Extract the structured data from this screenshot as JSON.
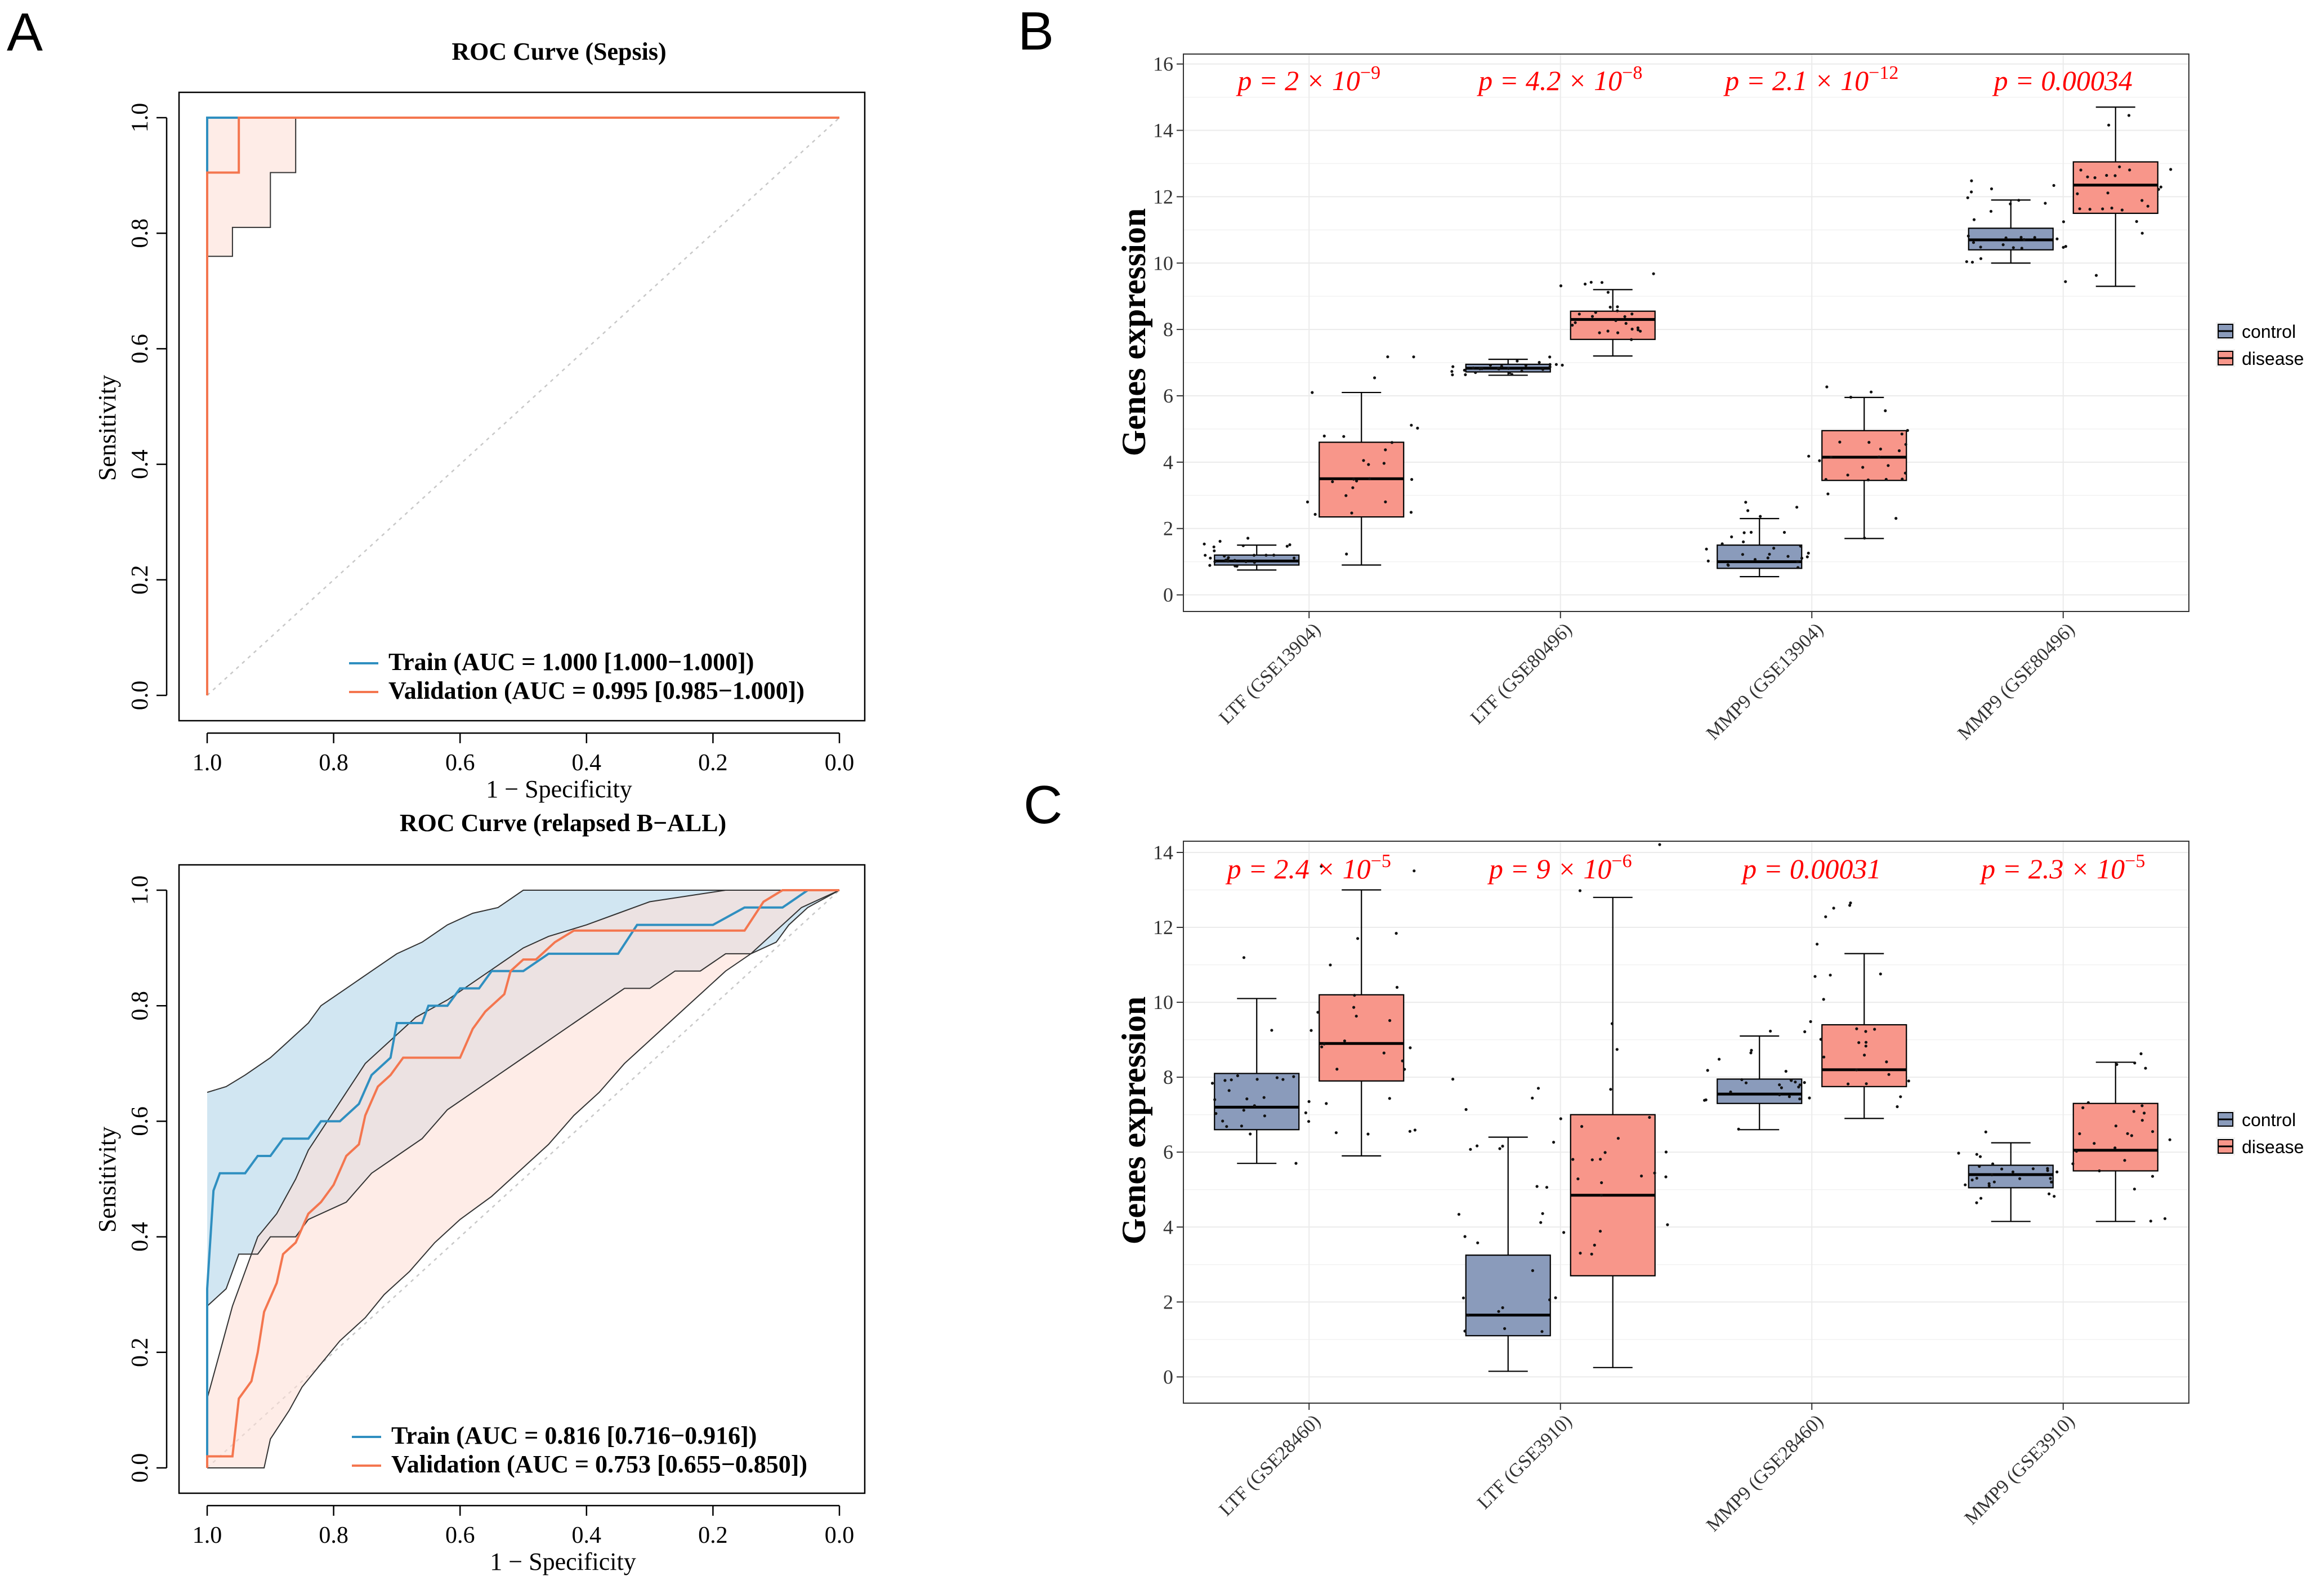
{
  "panels": {
    "A": "A",
    "B": "B",
    "C": "C"
  },
  "colors": {
    "train": "#2f8fc0",
    "validation": "#f4764f",
    "train_fill": "#cfe5f1",
    "validation_fill": "#fde0d7",
    "control_box": "#8a9bbb",
    "disease_box": "#f8968a",
    "pvalue": "#ff0000",
    "grid": "#ebebeb"
  },
  "chart_data": [
    {
      "type": "line",
      "id": "roc_sepsis",
      "title": "ROC Curve (Sepsis)",
      "xlabel": "1 − Specificity",
      "ylabel": "Sensitivity",
      "xlim": [
        1.0,
        0.0
      ],
      "ylim": [
        0.0,
        1.0
      ],
      "xticks": [
        "1.0",
        "0.8",
        "0.6",
        "0.4",
        "0.2",
        "0.0"
      ],
      "yticks": [
        "0.0",
        "0.2",
        "0.4",
        "0.6",
        "0.8",
        "1.0"
      ],
      "legend_position": "bottom-right",
      "series": [
        {
          "name": "Train",
          "legend": "Train (AUC = 1.000 [1.000−1.000])",
          "points": [
            [
              1.0,
              0.0
            ],
            [
              1.0,
              1.0
            ],
            [
              0.0,
              1.0
            ]
          ],
          "ci_lower": [
            [
              1.0,
              1.0
            ],
            [
              0.0,
              1.0
            ]
          ],
          "ci_upper": [
            [
              1.0,
              1.0
            ],
            [
              0.0,
              1.0
            ]
          ]
        },
        {
          "name": "Validation",
          "legend": "Validation (AUC = 0.995 [0.985−1.000])",
          "points": [
            [
              1.0,
              0.0
            ],
            [
              1.0,
              0.905
            ],
            [
              0.95,
              0.905
            ],
            [
              0.95,
              1.0
            ],
            [
              0.0,
              1.0
            ]
          ],
          "ci_lower": [
            [
              1.0,
              0.76
            ],
            [
              0.96,
              0.76
            ],
            [
              0.96,
              0.81
            ],
            [
              0.9,
              0.81
            ],
            [
              0.9,
              0.905
            ],
            [
              0.86,
              0.905
            ],
            [
              0.86,
              1.0
            ],
            [
              0.0,
              1.0
            ]
          ],
          "ci_upper": [
            [
              1.0,
              1.0
            ],
            [
              0.0,
              1.0
            ]
          ]
        }
      ]
    },
    {
      "type": "line",
      "id": "roc_ball",
      "title": "ROC Curve (relapsed B−ALL)",
      "xlabel": "1 − Specificity",
      "ylabel": "Sensitivity",
      "xlim": [
        1.0,
        0.0
      ],
      "ylim": [
        0.0,
        1.0
      ],
      "xticks": [
        "1.0",
        "0.8",
        "0.6",
        "0.4",
        "0.2",
        "0.0"
      ],
      "yticks": [
        "0.0",
        "0.2",
        "0.4",
        "0.6",
        "0.8",
        "1.0"
      ],
      "legend_position": "bottom-right",
      "series": [
        {
          "name": "Train",
          "legend": "Train (AUC = 0.816 [0.716−0.916])",
          "points": [
            [
              1.0,
              0.0
            ],
            [
              1.0,
              0.31
            ],
            [
              0.99,
              0.48
            ],
            [
              0.98,
              0.51
            ],
            [
              0.94,
              0.51
            ],
            [
              0.92,
              0.54
            ],
            [
              0.9,
              0.54
            ],
            [
              0.88,
              0.57
            ],
            [
              0.84,
              0.57
            ],
            [
              0.82,
              0.6
            ],
            [
              0.79,
              0.6
            ],
            [
              0.76,
              0.63
            ],
            [
              0.74,
              0.68
            ],
            [
              0.71,
              0.71
            ],
            [
              0.7,
              0.77
            ],
            [
              0.66,
              0.77
            ],
            [
              0.65,
              0.8
            ],
            [
              0.62,
              0.8
            ],
            [
              0.6,
              0.83
            ],
            [
              0.57,
              0.83
            ],
            [
              0.55,
              0.86
            ],
            [
              0.5,
              0.86
            ],
            [
              0.46,
              0.89
            ],
            [
              0.35,
              0.89
            ],
            [
              0.32,
              0.94
            ],
            [
              0.2,
              0.94
            ],
            [
              0.15,
              0.97
            ],
            [
              0.09,
              0.97
            ],
            [
              0.05,
              1.0
            ],
            [
              0.0,
              1.0
            ]
          ],
          "ci_lower": [
            [
              1.0,
              0.28
            ],
            [
              0.97,
              0.31
            ],
            [
              0.95,
              0.37
            ],
            [
              0.92,
              0.37
            ],
            [
              0.9,
              0.4
            ],
            [
              0.86,
              0.4
            ],
            [
              0.84,
              0.43
            ],
            [
              0.78,
              0.46
            ],
            [
              0.74,
              0.51
            ],
            [
              0.7,
              0.54
            ],
            [
              0.66,
              0.57
            ],
            [
              0.62,
              0.62
            ],
            [
              0.58,
              0.65
            ],
            [
              0.54,
              0.68
            ],
            [
              0.5,
              0.71
            ],
            [
              0.46,
              0.74
            ],
            [
              0.42,
              0.77
            ],
            [
              0.38,
              0.8
            ],
            [
              0.34,
              0.83
            ],
            [
              0.3,
              0.83
            ],
            [
              0.26,
              0.86
            ],
            [
              0.22,
              0.86
            ],
            [
              0.18,
              0.89
            ],
            [
              0.14,
              0.89
            ],
            [
              0.1,
              0.91
            ],
            [
              0.08,
              0.94
            ],
            [
              0.05,
              0.97
            ],
            [
              0.0,
              1.0
            ]
          ],
          "ci_upper": [
            [
              1.0,
              0.65
            ],
            [
              0.97,
              0.66
            ],
            [
              0.94,
              0.68
            ],
            [
              0.9,
              0.71
            ],
            [
              0.87,
              0.74
            ],
            [
              0.84,
              0.77
            ],
            [
              0.82,
              0.8
            ],
            [
              0.78,
              0.83
            ],
            [
              0.74,
              0.86
            ],
            [
              0.7,
              0.89
            ],
            [
              0.66,
              0.91
            ],
            [
              0.62,
              0.94
            ],
            [
              0.58,
              0.96
            ],
            [
              0.54,
              0.97
            ],
            [
              0.5,
              1.0
            ],
            [
              0.0,
              1.0
            ]
          ]
        },
        {
          "name": "Validation",
          "legend": "Validation (AUC = 0.753 [0.655−0.850])",
          "points": [
            [
              1.0,
              0.0
            ],
            [
              1.0,
              0.02
            ],
            [
              0.96,
              0.02
            ],
            [
              0.95,
              0.12
            ],
            [
              0.93,
              0.15
            ],
            [
              0.92,
              0.2
            ],
            [
              0.91,
              0.27
            ],
            [
              0.89,
              0.32
            ],
            [
              0.88,
              0.37
            ],
            [
              0.86,
              0.39
            ],
            [
              0.84,
              0.44
            ],
            [
              0.82,
              0.46
            ],
            [
              0.8,
              0.49
            ],
            [
              0.78,
              0.54
            ],
            [
              0.76,
              0.56
            ],
            [
              0.75,
              0.61
            ],
            [
              0.73,
              0.66
            ],
            [
              0.71,
              0.68
            ],
            [
              0.69,
              0.71
            ],
            [
              0.6,
              0.71
            ],
            [
              0.58,
              0.76
            ],
            [
              0.56,
              0.79
            ],
            [
              0.53,
              0.82
            ],
            [
              0.52,
              0.86
            ],
            [
              0.5,
              0.88
            ],
            [
              0.48,
              0.88
            ],
            [
              0.45,
              0.91
            ],
            [
              0.42,
              0.93
            ],
            [
              0.15,
              0.93
            ],
            [
              0.12,
              0.98
            ],
            [
              0.09,
              1.0
            ],
            [
              0.0,
              1.0
            ]
          ],
          "ci_lower": [
            [
              1.0,
              0.0
            ],
            [
              0.91,
              0.0
            ],
            [
              0.9,
              0.05
            ],
            [
              0.87,
              0.1
            ],
            [
              0.85,
              0.14
            ],
            [
              0.82,
              0.18
            ],
            [
              0.79,
              0.22
            ],
            [
              0.75,
              0.26
            ],
            [
              0.72,
              0.3
            ],
            [
              0.68,
              0.34
            ],
            [
              0.64,
              0.39
            ],
            [
              0.6,
              0.43
            ],
            [
              0.55,
              0.47
            ],
            [
              0.5,
              0.52
            ],
            [
              0.46,
              0.56
            ],
            [
              0.42,
              0.61
            ],
            [
              0.38,
              0.65
            ],
            [
              0.34,
              0.7
            ],
            [
              0.3,
              0.74
            ],
            [
              0.26,
              0.78
            ],
            [
              0.22,
              0.82
            ],
            [
              0.18,
              0.86
            ],
            [
              0.14,
              0.89
            ],
            [
              0.1,
              0.93
            ],
            [
              0.06,
              0.97
            ],
            [
              0.0,
              1.0
            ]
          ],
          "ci_upper": [
            [
              1.0,
              0.12
            ],
            [
              0.98,
              0.2
            ],
            [
              0.96,
              0.28
            ],
            [
              0.94,
              0.34
            ],
            [
              0.92,
              0.4
            ],
            [
              0.89,
              0.44
            ],
            [
              0.86,
              0.5
            ],
            [
              0.84,
              0.55
            ],
            [
              0.81,
              0.6
            ],
            [
              0.78,
              0.65
            ],
            [
              0.75,
              0.7
            ],
            [
              0.71,
              0.74
            ],
            [
              0.67,
              0.78
            ],
            [
              0.62,
              0.81
            ],
            [
              0.58,
              0.84
            ],
            [
              0.54,
              0.87
            ],
            [
              0.5,
              0.9
            ],
            [
              0.46,
              0.92
            ],
            [
              0.4,
              0.94
            ],
            [
              0.35,
              0.96
            ],
            [
              0.3,
              0.98
            ],
            [
              0.24,
              0.99
            ],
            [
              0.18,
              1.0
            ],
            [
              0.0,
              1.0
            ]
          ]
        }
      ]
    },
    {
      "type": "box",
      "id": "box_B",
      "ylabel": "Genes expression",
      "ylim": [
        -0.5,
        16.3
      ],
      "yticks": [
        0,
        2,
        4,
        6,
        8,
        10,
        12,
        14,
        16
      ],
      "categories": [
        "LTF (GSE13904)",
        "LTF (GSE80496)",
        "MMP9 (GSE13904)",
        "MMP9 (GSE80496)"
      ],
      "pvalues": [
        {
          "base": "p = 2 × 10",
          "exp": "−9"
        },
        {
          "base": "p = 4.2 × 10",
          "exp": "−8"
        },
        {
          "base": "p = 2.1 × 10",
          "exp": "−12"
        },
        {
          "base": "p = 0.00034",
          "exp": ""
        }
      ],
      "legend": [
        "control",
        "disease"
      ],
      "control": [
        {
          "lo": 0.75,
          "q1": 0.9,
          "med": 1.02,
          "q3": 1.2,
          "hi": 1.5
        },
        {
          "lo": 6.62,
          "q1": 6.72,
          "med": 6.83,
          "q3": 6.95,
          "hi": 7.1
        },
        {
          "lo": 0.55,
          "q1": 0.8,
          "med": 1.0,
          "q3": 1.5,
          "hi": 2.3
        },
        {
          "lo": 10.0,
          "q1": 10.4,
          "med": 10.7,
          "q3": 11.05,
          "hi": 11.9
        }
      ],
      "disease": [
        {
          "lo": 0.9,
          "q1": 2.35,
          "med": 3.5,
          "q3": 4.6,
          "hi": 6.1
        },
        {
          "lo": 7.2,
          "q1": 7.7,
          "med": 8.3,
          "q3": 8.55,
          "hi": 9.2
        },
        {
          "lo": 1.7,
          "q1": 3.45,
          "med": 4.15,
          "q3": 4.95,
          "hi": 5.95
        },
        {
          "lo": 9.3,
          "q1": 11.5,
          "med": 12.35,
          "q3": 13.05,
          "hi": 14.7
        }
      ]
    },
    {
      "type": "box",
      "id": "box_C",
      "ylabel": "Genes expression",
      "ylim": [
        -0.7,
        14.3
      ],
      "yticks": [
        0,
        2,
        4,
        6,
        8,
        10,
        12,
        14
      ],
      "categories": [
        "LTF (GSE28460)",
        "LTF (GSE3910)",
        "MMP9 (GSE28460)",
        "MMP9 (GSE3910)"
      ],
      "pvalues": [
        {
          "base": "p = 2.4 × 10",
          "exp": "−5"
        },
        {
          "base": "p = 9 × 10",
          "exp": "−6"
        },
        {
          "base": "p = 0.00031",
          "exp": ""
        },
        {
          "base": "p = 2.3 × 10",
          "exp": "−5"
        }
      ],
      "legend": [
        "control",
        "disease"
      ],
      "control": [
        {
          "lo": 5.7,
          "q1": 6.6,
          "med": 7.2,
          "q3": 8.1,
          "hi": 10.1
        },
        {
          "lo": 0.15,
          "q1": 1.1,
          "med": 1.65,
          "q3": 3.25,
          "hi": 6.4
        },
        {
          "lo": 6.6,
          "q1": 7.3,
          "med": 7.55,
          "q3": 7.95,
          "hi": 9.1
        },
        {
          "lo": 4.15,
          "q1": 5.05,
          "med": 5.4,
          "q3": 5.65,
          "hi": 6.25
        }
      ],
      "disease": [
        {
          "lo": 5.9,
          "q1": 7.9,
          "med": 8.9,
          "q3": 10.2,
          "hi": 13.0
        },
        {
          "lo": 0.25,
          "q1": 2.7,
          "med": 4.85,
          "q3": 7.0,
          "hi": 12.8
        },
        {
          "lo": 6.9,
          "q1": 7.75,
          "med": 8.2,
          "q3": 9.4,
          "hi": 11.3
        },
        {
          "lo": 4.15,
          "q1": 5.5,
          "med": 6.05,
          "q3": 7.3,
          "hi": 8.4
        }
      ]
    }
  ]
}
